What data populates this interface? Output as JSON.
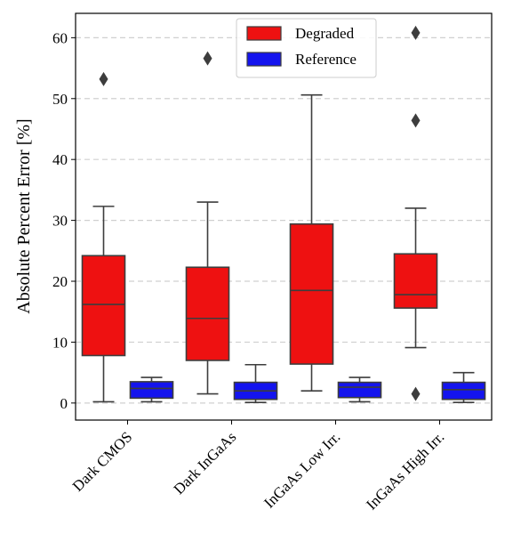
{
  "chart_data": {
    "type": "box",
    "ylabel": "Absolute Percent Error [%]",
    "xlabel": "",
    "ylim": [
      -2.8,
      64
    ],
    "yticks": [
      0,
      10,
      20,
      30,
      40,
      50,
      60
    ],
    "grid": "y-dashed",
    "legend_position": "top-right",
    "categories": [
      "Dark CMOS",
      "Dark InGaAs",
      "InGaAs Low Irr.",
      "InGaAs High Irr."
    ],
    "series": [
      {
        "name": "Degraded",
        "color": "#ee1111",
        "boxes": [
          {
            "whislo": 0.2,
            "q1": 7.8,
            "med": 16.2,
            "q3": 24.2,
            "whishi": 32.3,
            "fliers": [
              53.2
            ]
          },
          {
            "whislo": 1.5,
            "q1": 7.0,
            "med": 13.9,
            "q3": 22.3,
            "whishi": 33.0,
            "fliers": [
              56.6
            ]
          },
          {
            "whislo": 2.0,
            "q1": 6.4,
            "med": 18.5,
            "q3": 29.4,
            "whishi": 50.6,
            "fliers": []
          },
          {
            "whislo": 9.1,
            "q1": 15.6,
            "med": 17.8,
            "q3": 24.5,
            "whishi": 32.0,
            "fliers": [
              1.5,
              46.4,
              60.8
            ]
          }
        ]
      },
      {
        "name": "Reference",
        "color": "#1414ee",
        "boxes": [
          {
            "whislo": 0.2,
            "q1": 0.8,
            "med": 2.4,
            "q3": 3.5,
            "whishi": 4.2,
            "fliers": []
          },
          {
            "whislo": 0.1,
            "q1": 0.6,
            "med": 2.0,
            "q3": 3.4,
            "whishi": 6.3,
            "fliers": []
          },
          {
            "whislo": 0.2,
            "q1": 0.9,
            "med": 2.6,
            "q3": 3.4,
            "whishi": 4.2,
            "fliers": []
          },
          {
            "whislo": 0.1,
            "q1": 0.6,
            "med": 2.2,
            "q3": 3.4,
            "whishi": 5.0,
            "fliers": []
          }
        ]
      }
    ]
  }
}
